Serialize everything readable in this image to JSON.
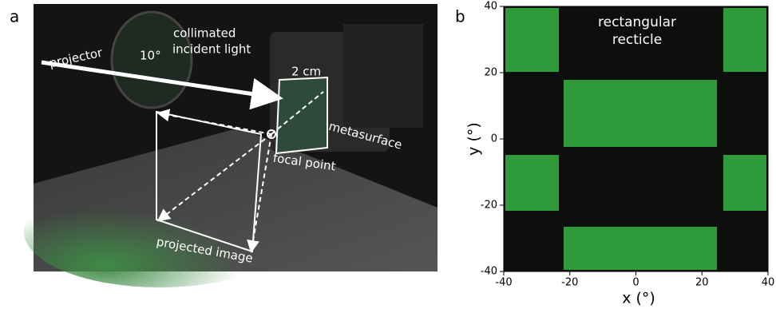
{
  "panels": [
    {
      "label": "a",
      "annotations": {
        "collimated": [
          "collimated",
          "incident light"
        ],
        "projector": "projector",
        "angle": "10°",
        "size": "2 cm",
        "metasurface": "metasurface",
        "focal_point": "focal point",
        "projected_image": "projected image"
      }
    },
    {
      "label": "b",
      "title": [
        "rectangular",
        "recticle"
      ],
      "xlabel": "x (°)",
      "ylabel": "y (°)",
      "xlim": [
        -40,
        40
      ],
      "ylim": [
        -40,
        40
      ],
      "xticks": [
        -40,
        -20,
        0,
        20,
        40
      ],
      "yticks": [
        -40,
        -20,
        0,
        20,
        40
      ]
    }
  ]
}
